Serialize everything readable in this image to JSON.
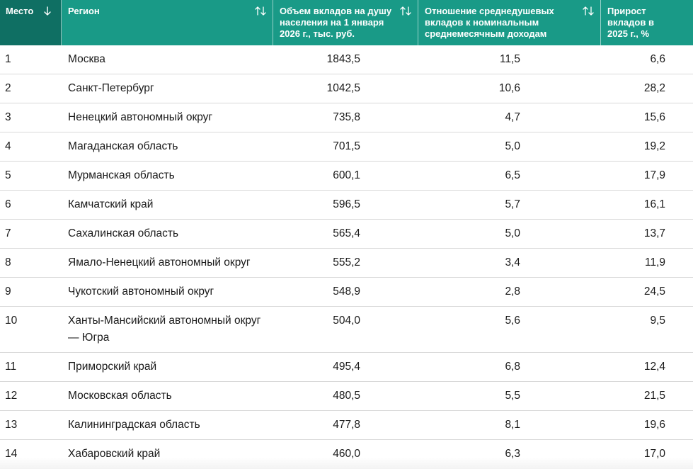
{
  "header": {
    "rank": "Место",
    "region": "Регион",
    "deposits": "Объем вкладов на душу населения на 1 января 2026 г., тыс. руб.",
    "ratio": "Отношение среднедушевых вкладов к номинальным среднемесячным доходам",
    "growth": "Прирост вкладов в 2025 г., %"
  },
  "rows": [
    {
      "rank": "1",
      "region": "Москва",
      "deposits": "1843,5",
      "ratio": "11,5",
      "growth": "6,6"
    },
    {
      "rank": "2",
      "region": "Санкт-Петербург",
      "deposits": "1042,5",
      "ratio": "10,6",
      "growth": "28,2"
    },
    {
      "rank": "3",
      "region": "Ненецкий автономный округ",
      "deposits": "735,8",
      "ratio": "4,7",
      "growth": "15,6"
    },
    {
      "rank": "4",
      "region": "Магаданская область",
      "deposits": "701,5",
      "ratio": "5,0",
      "growth": "19,2"
    },
    {
      "rank": "5",
      "region": "Мурманская область",
      "deposits": "600,1",
      "ratio": "6,5",
      "growth": "17,9"
    },
    {
      "rank": "6",
      "region": "Камчатский край",
      "deposits": "596,5",
      "ratio": "5,7",
      "growth": "16,1"
    },
    {
      "rank": "7",
      "region": "Сахалинская область",
      "deposits": "565,4",
      "ratio": "5,0",
      "growth": "13,7"
    },
    {
      "rank": "8",
      "region": "Ямало-Ненецкий автономный округ",
      "deposits": "555,2",
      "ratio": "3,4",
      "growth": "11,9"
    },
    {
      "rank": "9",
      "region": "Чукотский автономный округ",
      "deposits": "548,9",
      "ratio": "2,8",
      "growth": "24,5"
    },
    {
      "rank": "10",
      "region": "Ханты-Мансийский автономный округ — Югра",
      "deposits": "504,0",
      "ratio": "5,6",
      "growth": "9,5"
    },
    {
      "rank": "11",
      "region": "Приморский край",
      "deposits": "495,4",
      "ratio": "6,8",
      "growth": "12,4"
    },
    {
      "rank": "12",
      "region": "Московская область",
      "deposits": "480,5",
      "ratio": "5,5",
      "growth": "21,5"
    },
    {
      "rank": "13",
      "region": "Калининградская область",
      "deposits": "477,8",
      "ratio": "8,1",
      "growth": "19,6"
    },
    {
      "rank": "14",
      "region": "Хабаровский край",
      "deposits": "460,0",
      "ratio": "6,3",
      "growth": "17,0"
    }
  ],
  "icons": {
    "rank_sort": "arrow-down-icon",
    "column_sort": "sort-updown-icon"
  },
  "colors": {
    "header_bg": "#199a87",
    "active_header_bg": "#0f6f63",
    "header_text": "#ffffff",
    "row_border": "#d9d9d9"
  }
}
